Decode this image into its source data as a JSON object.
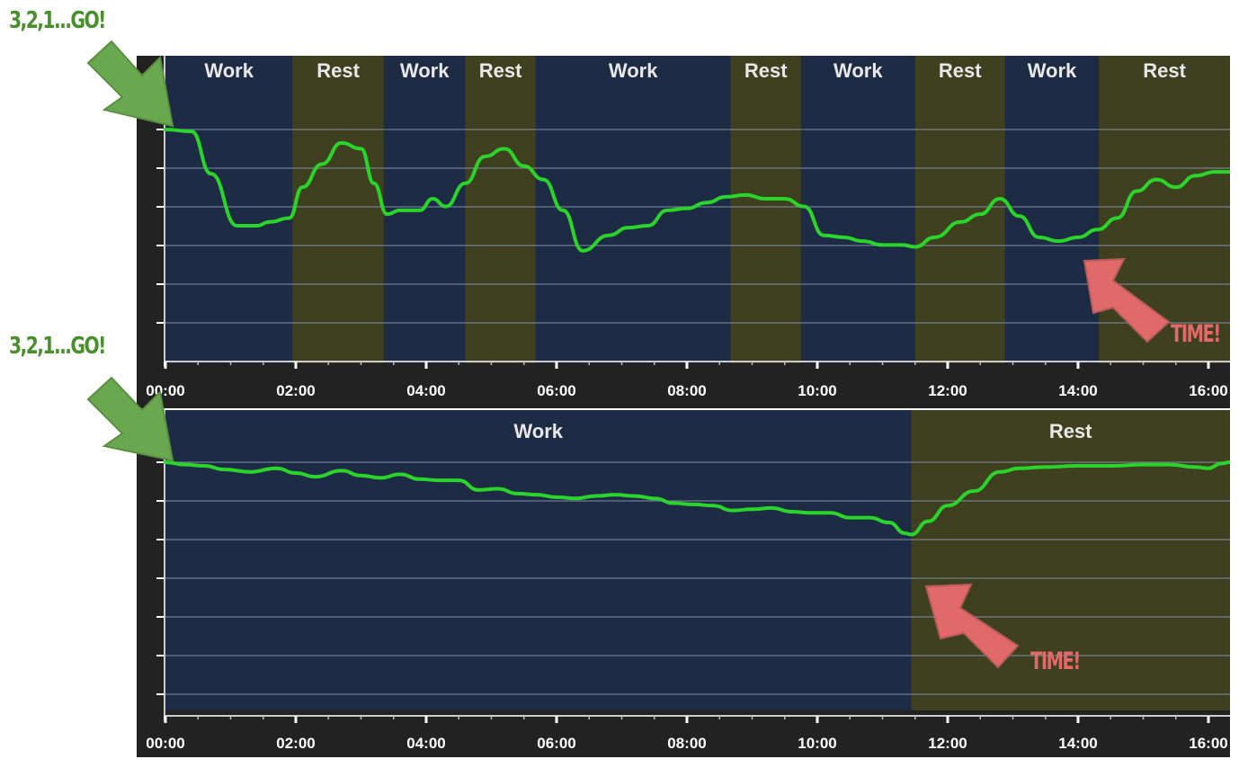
{
  "go_label": "3,2,1...GO!",
  "time_label": "TIME!",
  "colors": {
    "work": "#1e2b45",
    "rest": "#3e4020",
    "line": "#2bd42b",
    "grid": "#8a96b0",
    "go_arrow": "#6aa84f",
    "time_arrow": "#e06a6a",
    "background": "#222222"
  },
  "icons": {
    "go": "arrow-down-right-icon",
    "time": "arrow-up-left-icon"
  },
  "chart_data": [
    {
      "type": "line",
      "title": "",
      "xlabel": "",
      "ylabel": "",
      "xlim": [
        0,
        16.33
      ],
      "ylim": [
        0,
        100
      ],
      "x_tick_labels": [
        "00:00",
        "02:00",
        "04:00",
        "06:00",
        "08:00",
        "10:00",
        "12:00",
        "14:00",
        "16:00"
      ],
      "x_tick_values": [
        0,
        2,
        4,
        6,
        8,
        10,
        12,
        14,
        16
      ],
      "grid": true,
      "segments": [
        {
          "label": "Work",
          "start": 0,
          "end": 1.95
        },
        {
          "label": "Rest",
          "start": 1.95,
          "end": 3.35
        },
        {
          "label": "Work",
          "start": 3.35,
          "end": 4.6
        },
        {
          "label": "Rest",
          "start": 4.6,
          "end": 5.68
        },
        {
          "label": "Work",
          "start": 5.68,
          "end": 8.67
        },
        {
          "label": "Rest",
          "start": 8.67,
          "end": 9.75
        },
        {
          "label": "Work",
          "start": 9.75,
          "end": 11.5
        },
        {
          "label": "Rest",
          "start": 11.5,
          "end": 12.88
        },
        {
          "label": "Work",
          "start": 12.88,
          "end": 14.32
        },
        {
          "label": "Rest",
          "start": 14.32,
          "end": 16.33
        }
      ],
      "series": [
        {
          "x": [
            0,
            0.4,
            0.7,
            1.1,
            1.4,
            1.6,
            1.9,
            2.1,
            2.4,
            2.7,
            3.0,
            3.2,
            3.4,
            3.6,
            3.9,
            4.1,
            4.3,
            4.6,
            4.9,
            5.2,
            5.5,
            5.8,
            6.1,
            6.4,
            6.8,
            7.1,
            7.4,
            7.7,
            8.0,
            8.3,
            8.6,
            8.9,
            9.2,
            9.5,
            9.8,
            10.1,
            10.4,
            10.7,
            11.0,
            11.3,
            11.5,
            11.8,
            12.2,
            12.5,
            12.8,
            13.1,
            13.4,
            13.7,
            14.0,
            14.3,
            14.6,
            14.9,
            15.2,
            15.5,
            15.8,
            16.1,
            16.33
          ],
          "y": [
            100,
            99,
            77,
            50,
            50,
            52,
            54,
            70,
            82,
            93,
            90,
            72,
            56,
            58,
            58,
            64,
            60,
            72,
            86,
            90,
            81,
            74,
            58,
            37,
            45,
            49,
            50,
            58,
            59,
            62,
            65,
            66,
            64,
            64,
            60,
            45,
            44,
            42,
            40,
            40,
            39,
            44,
            52,
            56,
            64,
            55,
            44,
            42,
            44,
            48,
            54,
            68,
            74,
            70,
            76,
            78,
            78
          ]
        }
      ]
    },
    {
      "type": "line",
      "title": "",
      "xlabel": "",
      "ylabel": "",
      "xlim": [
        0,
        16.33
      ],
      "ylim": [
        0,
        100
      ],
      "x_tick_labels": [
        "00:00",
        "02:00",
        "04:00",
        "06:00",
        "08:00",
        "10:00",
        "12:00",
        "14:00",
        "16:00"
      ],
      "x_tick_values": [
        0,
        2,
        4,
        6,
        8,
        10,
        12,
        14,
        16
      ],
      "grid": true,
      "segments": [
        {
          "label": "Work",
          "start": 0,
          "end": 11.44
        },
        {
          "label": "Rest",
          "start": 11.44,
          "end": 16.33
        }
      ],
      "series": [
        {
          "x": [
            0,
            0.3,
            0.6,
            0.9,
            1.3,
            1.7,
            2.0,
            2.3,
            2.7,
            3.0,
            3.3,
            3.6,
            3.9,
            4.2,
            4.5,
            4.8,
            5.1,
            5.4,
            5.7,
            6.0,
            6.3,
            6.6,
            6.9,
            7.2,
            7.5,
            7.8,
            8.1,
            8.4,
            8.7,
            9.0,
            9.3,
            9.6,
            9.9,
            10.2,
            10.5,
            10.8,
            11.1,
            11.35,
            11.44,
            11.7,
            12.0,
            12.4,
            12.8,
            13.1,
            13.5,
            14.0,
            14.5,
            15.0,
            15.4,
            15.8,
            16.0,
            16.2,
            16.33
          ],
          "y": [
            100,
            98,
            97,
            94,
            92,
            95,
            91,
            88,
            93,
            89,
            87,
            90,
            86,
            85,
            85,
            77,
            78,
            74,
            73,
            71,
            70,
            72,
            73,
            72,
            70,
            66,
            65,
            64,
            60,
            61,
            62,
            59,
            58,
            58,
            54,
            54,
            50,
            41,
            40,
            51,
            64,
            76,
            92,
            95,
            96,
            97,
            97,
            98,
            98,
            96,
            95,
            99,
            100
          ]
        }
      ]
    }
  ]
}
